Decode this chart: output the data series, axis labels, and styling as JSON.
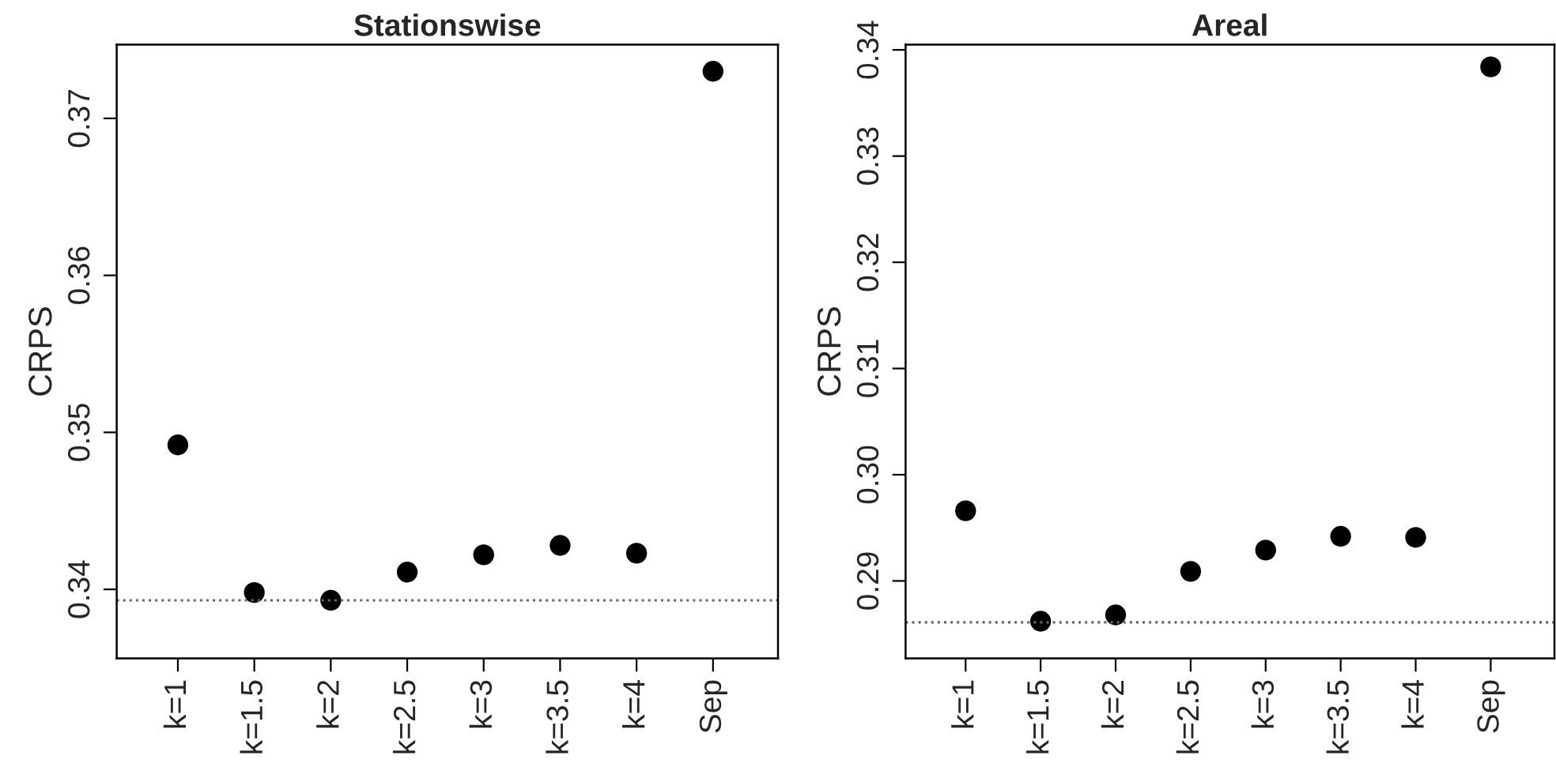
{
  "chart_data": [
    {
      "type": "scatter",
      "title": "Stationswise",
      "ylabel": "CRPS",
      "categories": [
        "k=1",
        "k=1.5",
        "k=2",
        "k=2.5",
        "k=3",
        "k=3.5",
        "k=4",
        "Sep"
      ],
      "series": [
        {
          "color": "#000000",
          "values": [
            0.3492,
            0.3398,
            0.3393,
            0.3411,
            0.3422,
            0.3428,
            0.3423,
            0.373
          ]
        }
      ],
      "ylim": [
        0.3356,
        0.3747
      ],
      "yticks": [
        0.34,
        0.35,
        0.36,
        0.37
      ],
      "marker": "circle",
      "grid": false,
      "ref_lines": [
        {
          "axis": "y",
          "value": 0.3393,
          "color": "#666666",
          "line_style": "dotted"
        }
      ]
    },
    {
      "type": "scatter",
      "title": "Areal",
      "ylabel": "CRPS",
      "categories": [
        "k=1",
        "k=1.5",
        "k=2",
        "k=2.5",
        "k=3",
        "k=3.5",
        "k=4",
        "Sep"
      ],
      "series": [
        {
          "color": "#000000",
          "values": [
            0.2966,
            0.2862,
            0.2868,
            0.2909,
            0.2929,
            0.2942,
            0.2941,
            0.3384
          ]
        }
      ],
      "ylim": [
        0.2827,
        0.3405
      ],
      "yticks": [
        0.29,
        {
          "value": 0.3,
          "label": "0.30"
        },
        0.31,
        0.32,
        0.33,
        0.34
      ],
      "marker": "circle",
      "grid": false,
      "ref_lines": [
        {
          "axis": "y",
          "value": 0.2861,
          "color": "#666666",
          "line_style": "dotted"
        }
      ]
    }
  ]
}
